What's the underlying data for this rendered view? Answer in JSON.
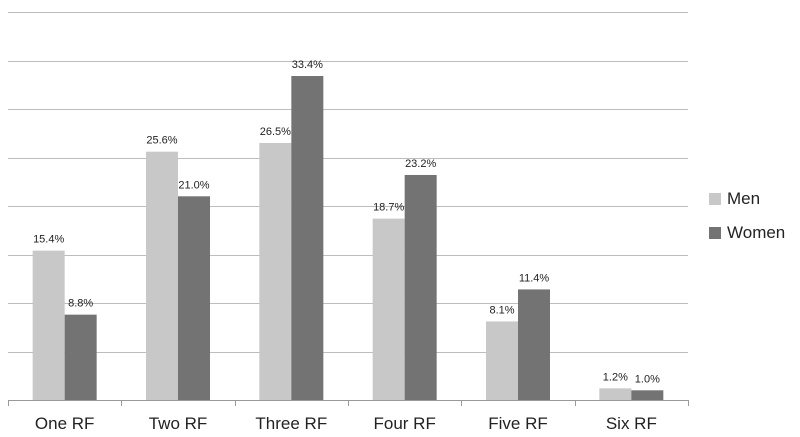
{
  "chart_data": {
    "type": "bar",
    "title": "",
    "xlabel": "",
    "ylabel": "",
    "categories": [
      "One RF",
      "Two RF",
      "Three RF",
      "Four RF",
      "Five RF",
      "Six RF"
    ],
    "series": [
      {
        "name": "Men",
        "color": "#c8c8c8",
        "values": [
          15.4,
          25.6,
          26.5,
          18.7,
          8.1,
          1.2
        ],
        "labels": [
          "15.4%",
          "25.6%",
          "26.5%",
          "18.7%",
          "8.1%",
          "1.2%"
        ]
      },
      {
        "name": "Women",
        "color": "#737373",
        "values": [
          8.8,
          21.0,
          33.4,
          23.2,
          11.4,
          1.0
        ],
        "labels": [
          "8.8%",
          "21.0%",
          "33.4%",
          "23.2%",
          "11.4%",
          "1.0%"
        ]
      }
    ],
    "ylim": [
      0,
      40
    ],
    "grid": true,
    "legend_position": "right"
  }
}
